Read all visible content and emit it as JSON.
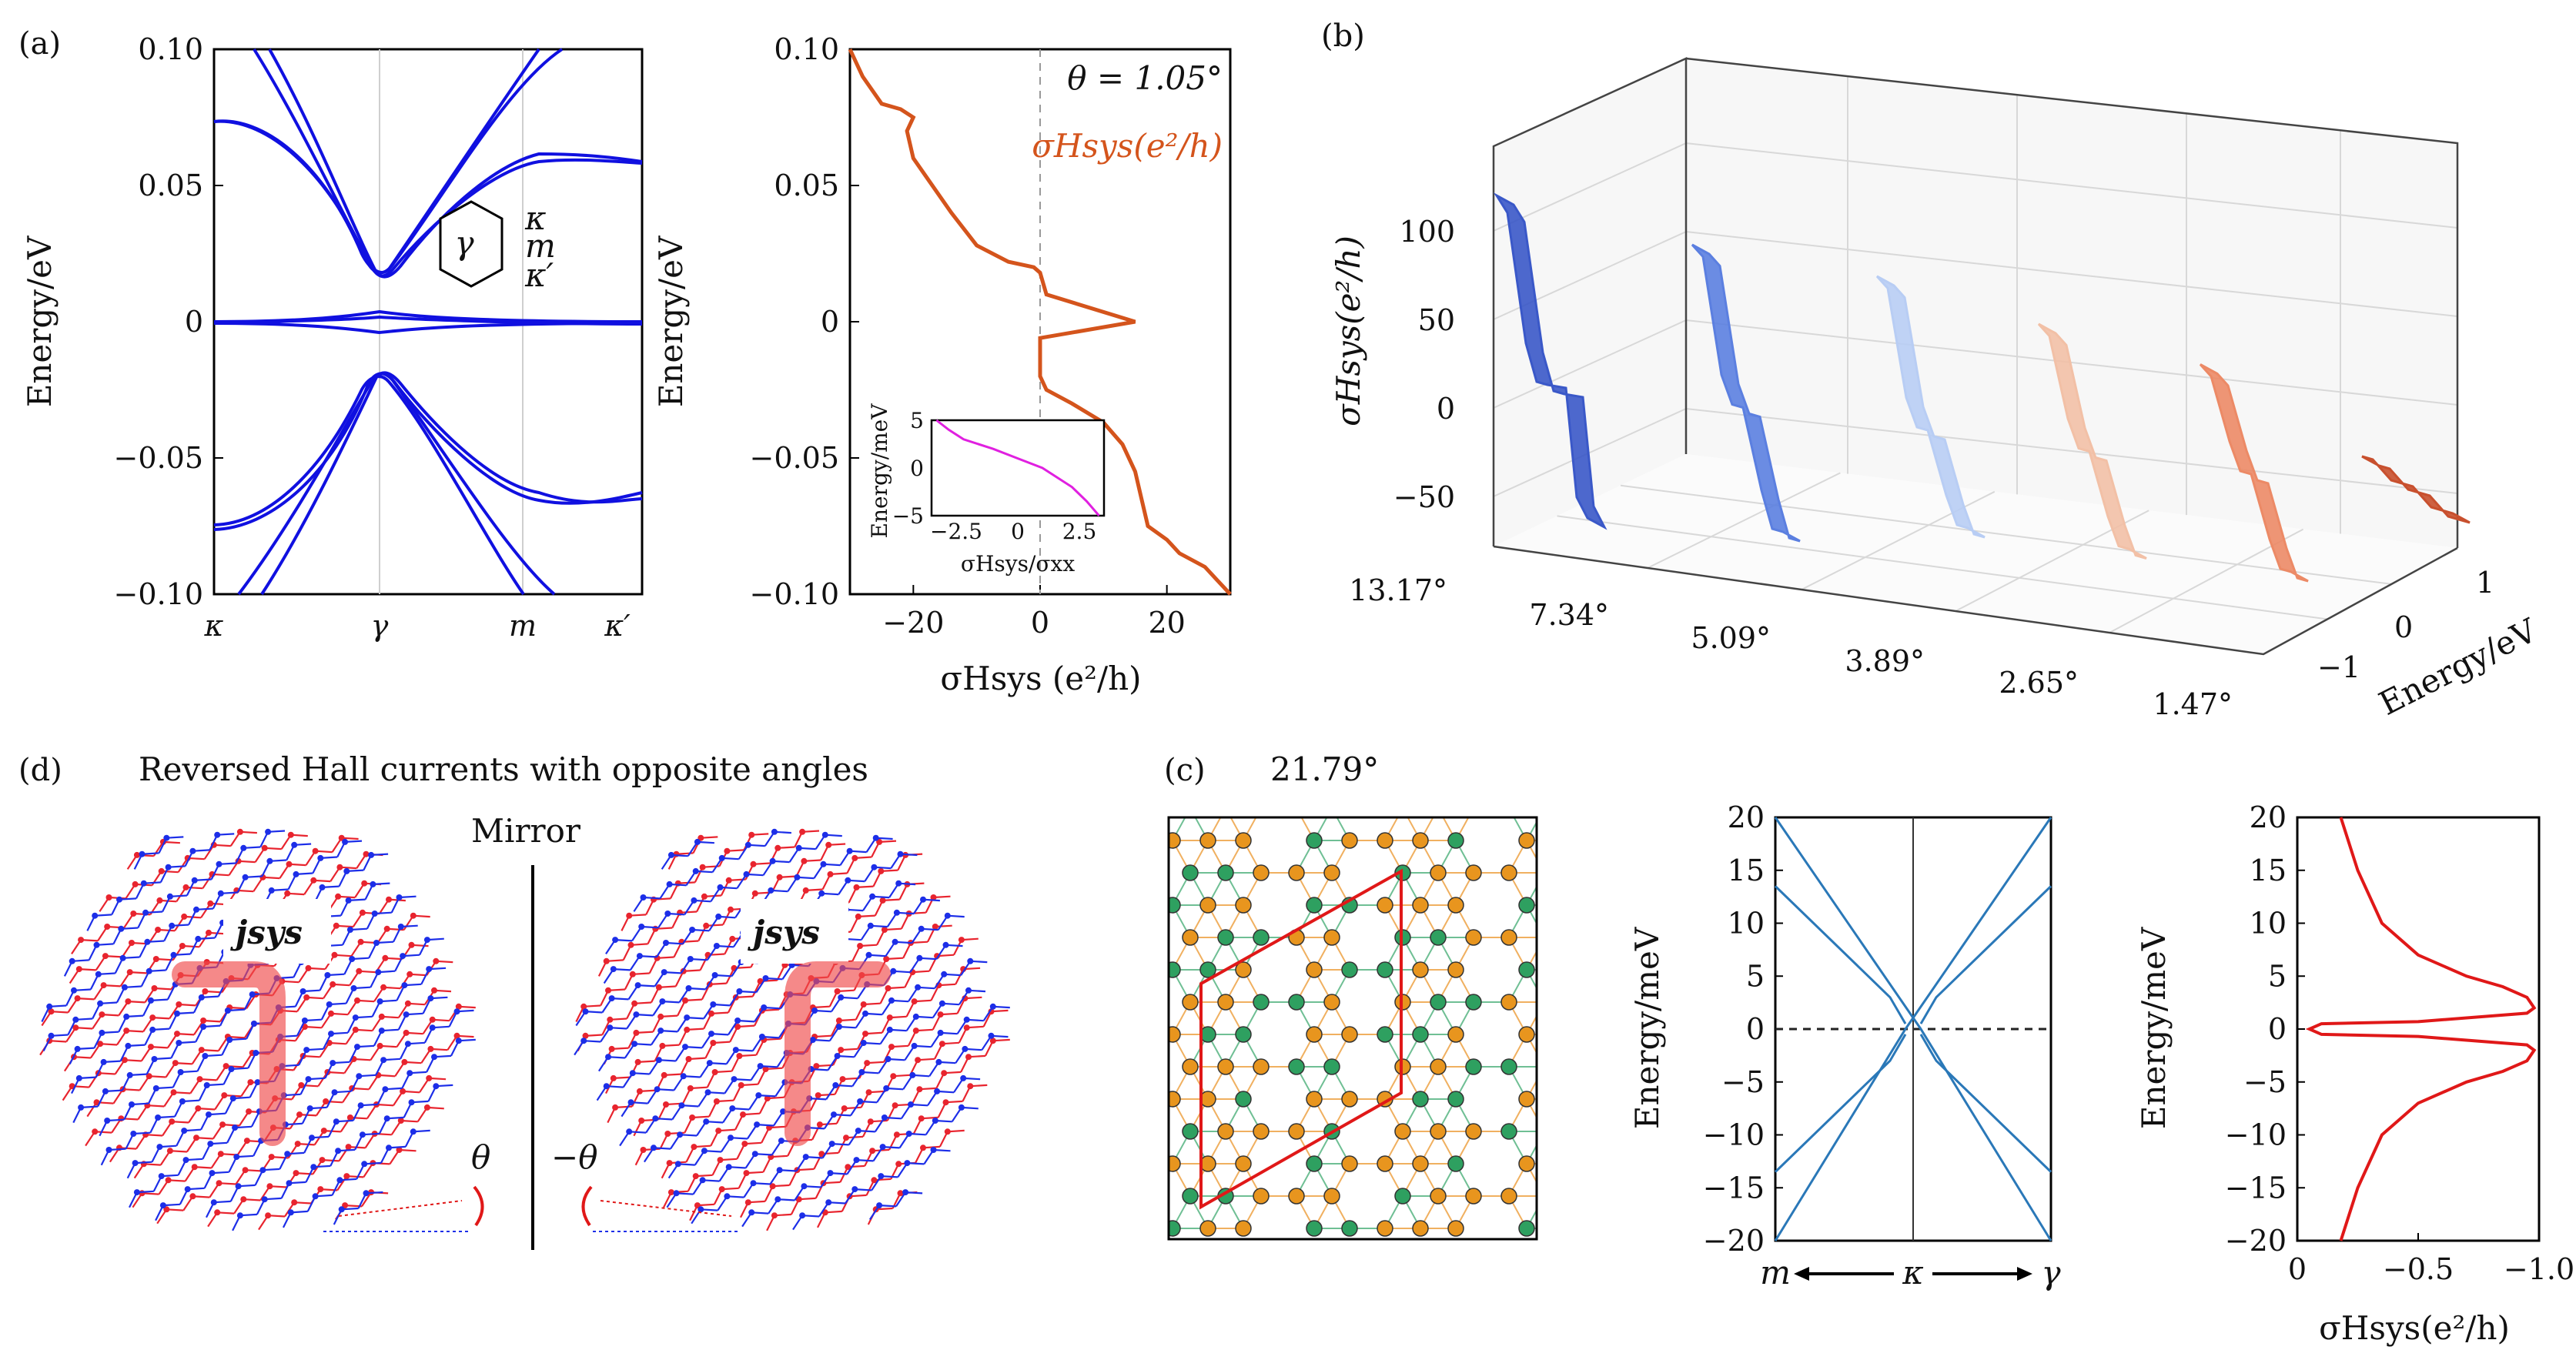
{
  "panel_labels": {
    "a": "(a)",
    "b": "(b)",
    "c": "(c)",
    "d": "(d)"
  },
  "chart_data": [
    {
      "id": "a_bands",
      "type": "line",
      "ylabel": "Energy/eV",
      "ylim": [
        -0.1,
        0.1
      ],
      "yticks": [
        "0.10",
        "0.05",
        "0",
        "−0.05",
        "−0.10"
      ],
      "ytick_values": [
        0.1,
        0.05,
        0,
        -0.05,
        -0.1
      ],
      "xticks": [
        "κ",
        "γ",
        "m",
        "κ′"
      ],
      "xtick_values": [
        0,
        1,
        1.9,
        2.4
      ],
      "inset_labels": {
        "center": "γ",
        "k": "κ",
        "m": "m",
        "kp": "κ′"
      },
      "color": "#1010e0"
    },
    {
      "id": "a_hall",
      "type": "line",
      "title": "θ = 1.05°",
      "legend": "σHsys(e²/h)",
      "ylabel": "Energy/eV",
      "xlabel": "σHsys (e²/h)",
      "xlim": [
        -30,
        30
      ],
      "ylim": [
        -0.1,
        0.1
      ],
      "xticks": [
        "−20",
        "0",
        "20"
      ],
      "xtick_values": [
        -20,
        0,
        20
      ],
      "yticks": [
        "0.10",
        "0.05",
        "0",
        "−0.05",
        "−0.10"
      ],
      "ytick_values": [
        0.1,
        0.05,
        0,
        -0.05,
        -0.1
      ],
      "color": "#d4541c",
      "series": [
        {
          "name": "σH",
          "x": [
            -30,
            -28,
            -25,
            -22,
            -20,
            -21,
            -20,
            -14,
            -10,
            -5,
            -1,
            0,
            1,
            15,
            0,
            0,
            1,
            5,
            10,
            13,
            15,
            16,
            17,
            20,
            22,
            26,
            28,
            30
          ],
          "y": [
            0.1,
            0.09,
            0.08,
            0.078,
            0.075,
            0.07,
            0.06,
            0.04,
            0.028,
            0.022,
            0.02,
            0.018,
            0.01,
            0,
            -0.006,
            -0.02,
            -0.025,
            -0.03,
            -0.037,
            -0.045,
            -0.055,
            -0.065,
            -0.075,
            -0.08,
            -0.085,
            -0.09,
            -0.095,
            -0.1
          ]
        }
      ],
      "inset": {
        "ylabel": "Energy/meV",
        "xlabel": "σHsys/σxx",
        "xticks": [
          "−2.5",
          "0",
          "2.5"
        ],
        "xtick_values": [
          -2.5,
          0,
          2.5
        ],
        "yticks": [
          "5",
          "0",
          "−5"
        ],
        "ytick_values": [
          5,
          0,
          -5
        ],
        "xlim": [
          -3.5,
          3.5
        ],
        "ylim": [
          -5,
          5
        ],
        "color": "#e020e0",
        "x": [
          -3.3,
          -2.8,
          -2.2,
          -1,
          0,
          1,
          2.2,
          2.8,
          3.3
        ],
        "y": [
          5,
          4,
          3,
          2,
          1,
          0,
          -2,
          -3.5,
          -5
        ]
      }
    },
    {
      "id": "b_3d",
      "type": "area",
      "zlabel": "σHsys(e²/h)",
      "ylabel": "Energy/eV",
      "zticks": [
        "100",
        "50",
        "0",
        "−50"
      ],
      "ztick_values": [
        100,
        50,
        0,
        -50
      ],
      "zlim": [
        -70,
        120
      ],
      "energy_ticks": [
        "1",
        "0",
        "−1"
      ],
      "energy_values": [
        1,
        0,
        -1
      ],
      "angles": [
        "13.17°",
        "7.34°",
        "5.09°",
        "3.89°",
        "2.65°",
        "1.47°"
      ],
      "series": [
        {
          "name": "13.17°",
          "color": "#3a58c8",
          "values": [
            120,
            112,
            40,
            20,
            20,
            20,
            -40,
            -50
          ]
        },
        {
          "name": "7.34°",
          "color": "#5b7fe0",
          "values": [
            100,
            95,
            30,
            15,
            15,
            -30,
            -50,
            -50
          ]
        },
        {
          "name": "5.09°",
          "color": "#b8cdf4",
          "values": [
            90,
            85,
            25,
            10,
            10,
            -25,
            -40,
            -40
          ]
        },
        {
          "name": "3.89°",
          "color": "#f2c0a6",
          "values": [
            70,
            65,
            20,
            5,
            5,
            -30,
            -45,
            -45
          ]
        },
        {
          "name": "2.65°",
          "color": "#ec8a66",
          "values": [
            55,
            50,
            15,
            0,
            0,
            -35,
            -50,
            -50
          ]
        },
        {
          "name": "1.47°",
          "color": "#c8502e",
          "values": [
            10,
            10,
            0,
            0,
            0,
            -10,
            -10,
            -10
          ]
        }
      ]
    },
    {
      "id": "c_bands",
      "type": "line",
      "ylabel": "Energy/meV",
      "ylim": [
        -20,
        20
      ],
      "yticks": [
        "20",
        "15",
        "10",
        "5",
        "0",
        "−5",
        "−10",
        "−15",
        "−20"
      ],
      "ytick_values": [
        20,
        15,
        10,
        5,
        0,
        -5,
        -10,
        -15,
        -20
      ],
      "xlabels": [
        "m",
        "κ",
        "γ"
      ],
      "color": "#2a78b8"
    },
    {
      "id": "c_hall",
      "type": "line",
      "ylabel": "Energy/meV",
      "xlabel": "σHsys(e²/h)",
      "xlim": [
        0,
        -1.0
      ],
      "ylim": [
        -20,
        20
      ],
      "xticks": [
        "0",
        "−0.5",
        "−1.0"
      ],
      "xtick_values": [
        0,
        -0.5,
        -1.0
      ],
      "yticks": [
        "20",
        "15",
        "10",
        "5",
        "0",
        "−5",
        "−10",
        "−15",
        "−20"
      ],
      "ytick_values": [
        20,
        15,
        10,
        5,
        0,
        -5,
        -10,
        -15,
        -20
      ],
      "color": "#e01818",
      "series": [
        {
          "name": "σH",
          "x": [
            -0.18,
            -0.25,
            -0.35,
            -0.5,
            -0.7,
            -0.85,
            -0.95,
            -0.98,
            -0.95,
            -0.5,
            -0.1,
            -0.05,
            -0.1,
            -0.5,
            -0.95,
            -0.98,
            -0.95,
            -0.85,
            -0.7,
            -0.5,
            -0.35,
            -0.25,
            -0.18
          ],
          "y": [
            20,
            15,
            10,
            7,
            5,
            4,
            3,
            2,
            1.5,
            0.7,
            0.5,
            0,
            -0.5,
            -0.7,
            -1.5,
            -2,
            -3,
            -4,
            -5,
            -7,
            -10,
            -15,
            -20
          ]
        }
      ]
    }
  ],
  "panel_c": {
    "angle": "21.79°"
  },
  "panel_d": {
    "title": "Reversed Hall currents with opposite angles",
    "mirror": "Mirror",
    "current": "jsys",
    "theta": "θ",
    "neg_theta": "−θ"
  },
  "colors": {
    "blue_bands": "#1010e0",
    "orange": "#d4541c",
    "teal": "#2a78b8",
    "red": "#e01818",
    "lattice_red": "#e8242e",
    "lattice_blue": "#1c2ee8"
  }
}
